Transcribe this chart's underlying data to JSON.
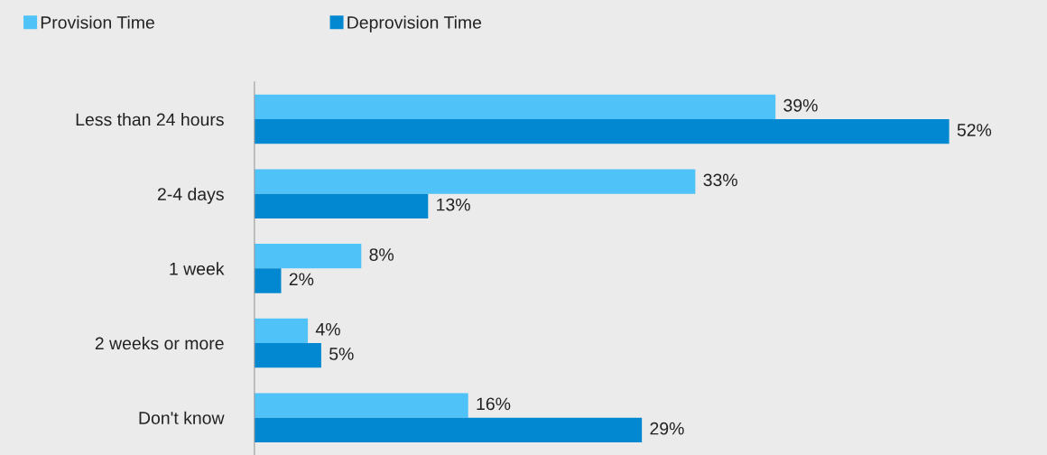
{
  "chart_data": {
    "type": "bar",
    "orientation": "horizontal",
    "categories": [
      "Less than 24 hours",
      "2-4 days",
      "1 week",
      "2 weeks or more",
      "Don't know"
    ],
    "series": [
      {
        "name": "Provision Time",
        "color": "#4fc3f7",
        "values": [
          39,
          33,
          8,
          4,
          16
        ],
        "value_labels": [
          "39%",
          "33%",
          "8%",
          "4%",
          "16%"
        ]
      },
      {
        "name": "Deprovision Time",
        "color": "#0288d1",
        "values": [
          52,
          13,
          2,
          5,
          29
        ],
        "value_labels": [
          "52%",
          "13%",
          "2%",
          "5%",
          "29%"
        ]
      }
    ],
    "legend": "top left",
    "grid": false,
    "tick_labels": "y"
  }
}
